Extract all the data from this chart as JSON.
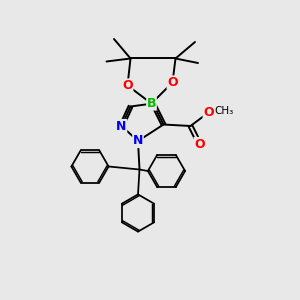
{
  "bg_color": "#e8e8e8",
  "atom_colors": {
    "B": "#00bb00",
    "O": "#ff0000",
    "N": "#0000ee",
    "C": "#000000"
  },
  "bond_color": "#000000",
  "bond_width": 1.4,
  "fig_w": 3.0,
  "fig_h": 3.0,
  "dpi": 100,
  "xlim": [
    0,
    10
  ],
  "ylim": [
    0,
    10
  ]
}
